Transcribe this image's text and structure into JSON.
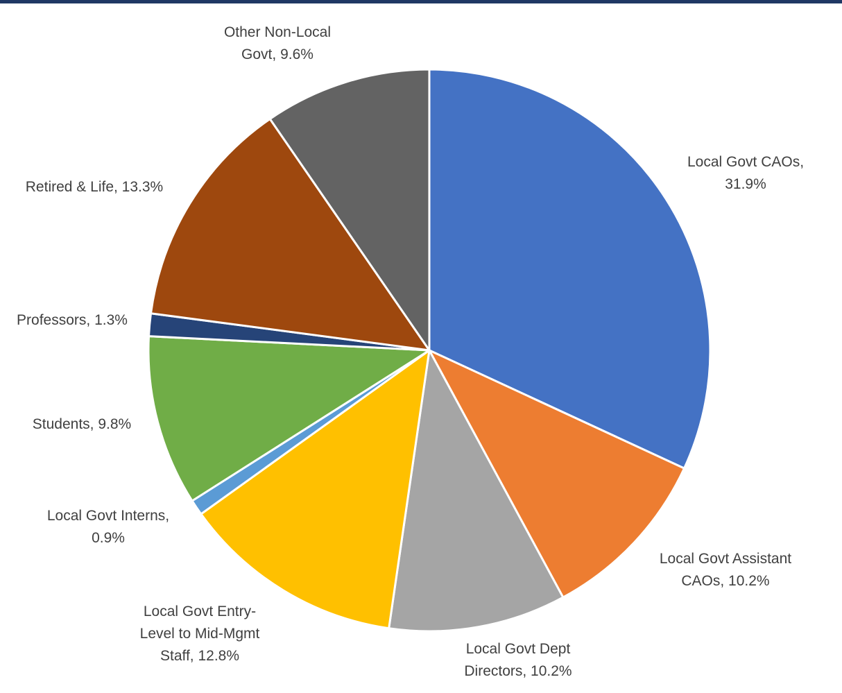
{
  "chart_data": {
    "type": "pie",
    "title": "",
    "unit": "%",
    "start_angle_deg": 0,
    "direction": "clockwise",
    "slices": [
      {
        "label": "Local Govt CAOs",
        "value": 31.9,
        "label_lines": [
          "Local Govt CAOs,",
          "31.9%"
        ],
        "color": "#4472c4"
      },
      {
        "label": "Local Govt Assistant CAOs",
        "value": 10.2,
        "label_lines": [
          "Local Govt Assistant",
          "CAOs, 10.2%"
        ],
        "color": "#ed7d31"
      },
      {
        "label": "Local Govt Dept Directors",
        "value": 10.2,
        "label_lines": [
          "Local Govt Dept",
          "Directors, 10.2%"
        ],
        "color": "#a5a5a5"
      },
      {
        "label": "Local Govt Entry-Level to Mid-Mgmt Staff",
        "value": 12.8,
        "label_lines": [
          "Local Govt Entry-",
          "Level to Mid-Mgmt",
          "Staff, 12.8%"
        ],
        "color": "#ffc000"
      },
      {
        "label": "Local Govt Interns",
        "value": 0.9,
        "label_lines": [
          "Local Govt Interns,",
          "0.9%"
        ],
        "color": "#5b9bd5"
      },
      {
        "label": "Students",
        "value": 9.8,
        "label_lines": [
          "Students, 9.8%"
        ],
        "color": "#70ad47"
      },
      {
        "label": "Professors",
        "value": 1.3,
        "label_lines": [
          "Professors, 1.3%"
        ],
        "color": "#264478"
      },
      {
        "label": "Retired & Life",
        "value": 13.3,
        "label_lines": [
          "Retired & Life, 13.3%"
        ],
        "color": "#9e480e"
      },
      {
        "label": "Other Non-Local Govt",
        "value": 9.6,
        "label_lines": [
          "Other Non-Local",
          "Govt, 9.6%"
        ],
        "color": "#636363"
      }
    ]
  }
}
